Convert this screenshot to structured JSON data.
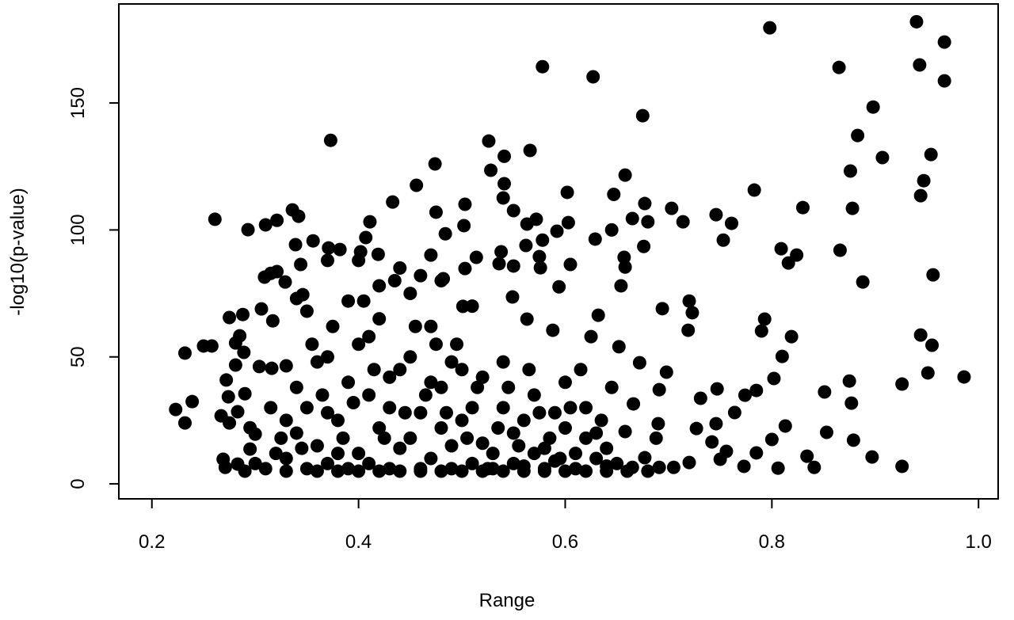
{
  "chart_data": {
    "type": "scatter",
    "x_label": "Range",
    "y_label": "-log10(p-value)",
    "xlim": [
      0.168,
      1.019
    ],
    "ylim": [
      -5.9,
      189
    ],
    "xticks": [
      0.2,
      0.4,
      0.6,
      0.8,
      {
        "value": 1,
        "label": "1.0"
      }
    ],
    "yticks": [
      0,
      50,
      100,
      150
    ],
    "series": [
      {
        "color": "#000000",
        "x": [
          0.223,
          0.232,
          0.232,
          0.239,
          0.25,
          0.258,
          0.261,
          0.373,
          0.578,
          0.627,
          0.675,
          0.798,
          0.865,
          0.94,
          0.943,
          0.967,
          0.967,
          0.898,
          0.883,
          0.907,
          0.954,
          0.947,
          0.944,
          0.876,
          0.956,
          0.944,
          0.955,
          0.951,
          0.986,
          0.926,
          0.926,
          0.897,
          0.879,
          0.877,
          0.875,
          0.888,
          0.866,
          0.878,
          0.83,
          0.824,
          0.809,
          0.816,
          0.783,
          0.761,
          0.746,
          0.753,
          0.703,
          0.714,
          0.68,
          0.677,
          0.665,
          0.647,
          0.658,
          0.645,
          0.676,
          0.657,
          0.658,
          0.654,
          0.72,
          0.723,
          0.694,
          0.719,
          0.672,
          0.652,
          0.793,
          0.79,
          0.819,
          0.81,
          0.802,
          0.785,
          0.774,
          0.764,
          0.747,
          0.731,
          0.727,
          0.742,
          0.746,
          0.75,
          0.756,
          0.773,
          0.785,
          0.8,
          0.806,
          0.813,
          0.834,
          0.841,
          0.851,
          0.853,
          0.698,
          0.691,
          0.69,
          0.688,
          0.705,
          0.72,
          0.691,
          0.677,
          0.665,
          0.658,
          0.666,
          0.526,
          0.528,
          0.541,
          0.566,
          0.541,
          0.54,
          0.55,
          0.563,
          0.572,
          0.578,
          0.562,
          0.538,
          0.55,
          0.536,
          0.575,
          0.576,
          0.592,
          0.602,
          0.603,
          0.605,
          0.594,
          0.629,
          0.632,
          0.588,
          0.563,
          0.549,
          0.514,
          0.502,
          0.503,
          0.484,
          0.475,
          0.474,
          0.456,
          0.433,
          0.411,
          0.407,
          0.419,
          0.402,
          0.47,
          0.482,
          0.503,
          0.501,
          0.336,
          0.342,
          0.321,
          0.31,
          0.293,
          0.356,
          0.371,
          0.382,
          0.339,
          0.344,
          0.321,
          0.315,
          0.309,
          0.329,
          0.346,
          0.306,
          0.317,
          0.288,
          0.275,
          0.285,
          0.281,
          0.289,
          0.281,
          0.304,
          0.316,
          0.33,
          0.272,
          0.274,
          0.29,
          0.267,
          0.275,
          0.283,
          0.295,
          0.269,
          0.271,
          0.283,
          0.295,
          0.3,
          0.33,
          0.34,
          0.35,
          0.36,
          0.37,
          0.38,
          0.39,
          0.4,
          0.41,
          0.42,
          0.43,
          0.44,
          0.45,
          0.46,
          0.47,
          0.48,
          0.49,
          0.5,
          0.51,
          0.52,
          0.53,
          0.54,
          0.55,
          0.56,
          0.57,
          0.58,
          0.59,
          0.6,
          0.61,
          0.62,
          0.63,
          0.64,
          0.31,
          0.32,
          0.33,
          0.34,
          0.35,
          0.36,
          0.37,
          0.38,
          0.39,
          0.4,
          0.41,
          0.42,
          0.43,
          0.44,
          0.45,
          0.46,
          0.47,
          0.48,
          0.49,
          0.5,
          0.51,
          0.52,
          0.53,
          0.54,
          0.55,
          0.56,
          0.57,
          0.58,
          0.59,
          0.6,
          0.61,
          0.62,
          0.63,
          0.64,
          0.65,
          0.3,
          0.315,
          0.325,
          0.345,
          0.355,
          0.365,
          0.375,
          0.385,
          0.395,
          0.405,
          0.415,
          0.425,
          0.435,
          0.445,
          0.455,
          0.465,
          0.475,
          0.485,
          0.495,
          0.505,
          0.515,
          0.525,
          0.535,
          0.545,
          0.555,
          0.565,
          0.575,
          0.585,
          0.595,
          0.605,
          0.615,
          0.625,
          0.635,
          0.645,
          0.36,
          0.38,
          0.4,
          0.42,
          0.44,
          0.46,
          0.48,
          0.5,
          0.52,
          0.54,
          0.56,
          0.58,
          0.6,
          0.62,
          0.64,
          0.66,
          0.68,
          0.29,
          0.33,
          0.35,
          0.37,
          0.39,
          0.41,
          0.43,
          0.45,
          0.47,
          0.49,
          0.51,
          0.44,
          0.4,
          0.42,
          0.46,
          0.48,
          0.37,
          0.34
        ],
        "values": [
          29.3,
          24,
          51.5,
          32.4,
          54.3,
          54.3,
          104.2,
          135.3,
          164.3,
          160.3,
          145,
          179.6,
          164,
          182,
          165,
          174,
          158.7,
          148.4,
          137.2,
          128.5,
          129.7,
          119.4,
          113.5,
          123.2,
          82.3,
          58.6,
          54.6,
          43.7,
          42.1,
          6.9,
          39.3,
          10.6,
          17.2,
          31.8,
          40.5,
          79.5,
          92,
          108.5,
          108.8,
          90.1,
          92.6,
          87,
          115.7,
          102.6,
          106,
          96,
          108.5,
          103.2,
          103.2,
          110.4,
          104.5,
          114,
          121.6,
          100,
          93.5,
          89.2,
          85.4,
          78,
          72,
          67.4,
          69,
          60.5,
          47.7,
          54,
          64.9,
          60.2,
          58,
          50.2,
          41.5,
          36.8,
          34.9,
          28.1,
          37.4,
          33.7,
          21.8,
          16.5,
          23.7,
          9.7,
          12.8,
          6.9,
          12.2,
          17.5,
          6.2,
          22.8,
          10.9,
          6.5,
          36.2,
          20.3,
          44,
          37.1,
          23.7,
          18,
          6.5,
          8.4,
          6.5,
          10.3,
          6.5,
          20.6,
          31.5,
          135,
          123.5,
          129,
          131.3,
          118.2,
          112.6,
          107.6,
          102.3,
          104.2,
          96,
          93.9,
          91.4,
          85.8,
          86.7,
          89.5,
          85.1,
          99.5,
          114.8,
          102.9,
          86.4,
          77.6,
          96.4,
          66.4,
          60.5,
          64.9,
          73.6,
          89.2,
          101.7,
          110.1,
          98.5,
          107,
          126,
          117.6,
          111,
          103.2,
          97,
          90.4,
          91.4,
          90.1,
          80.8,
          84.8,
          69.9,
          107.9,
          105.4,
          103.8,
          102,
          100.1,
          95.7,
          92.9,
          92.3,
          94.2,
          86.4,
          83.6,
          82.9,
          81.4,
          79.5,
          74.5,
          68.9,
          64.2,
          66.7,
          65.5,
          58.3,
          55.5,
          51.8,
          46.8,
          46.2,
          45.5,
          46.5,
          40.9,
          34.3,
          35.5,
          26.8,
          24,
          28.4,
          22.1,
          9.7,
          6.5,
          7.8,
          13.7,
          19.6,
          10,
          20,
          30,
          15,
          8,
          25,
          40,
          12,
          35,
          22,
          6,
          45,
          18,
          28,
          10,
          38,
          15,
          25,
          8,
          42,
          12,
          30,
          20,
          7,
          35,
          14,
          9,
          22,
          6,
          18,
          10,
          7,
          6,
          12,
          25,
          38,
          6,
          48,
          28,
          12,
          6,
          55,
          8,
          65,
          30,
          14,
          50,
          6,
          40,
          22,
          6,
          45,
          30,
          16,
          6,
          48,
          8,
          25,
          12,
          6,
          28,
          40,
          12,
          30,
          20,
          14,
          8,
          8,
          30,
          18,
          14,
          55,
          35,
          62,
          18,
          32,
          72,
          45,
          18,
          80,
          28,
          62,
          35,
          55,
          28,
          55,
          18,
          38,
          6,
          22,
          38,
          15,
          45,
          28,
          18,
          10,
          30,
          45,
          58,
          25,
          38,
          5,
          5,
          5,
          5,
          5,
          5,
          5,
          5,
          5,
          5,
          5,
          5,
          5,
          5,
          5,
          5,
          5,
          5,
          5,
          68,
          50,
          72,
          58,
          42,
          75,
          62,
          48,
          70,
          85,
          88,
          78,
          82,
          80,
          88,
          73
        ]
      }
    ]
  }
}
